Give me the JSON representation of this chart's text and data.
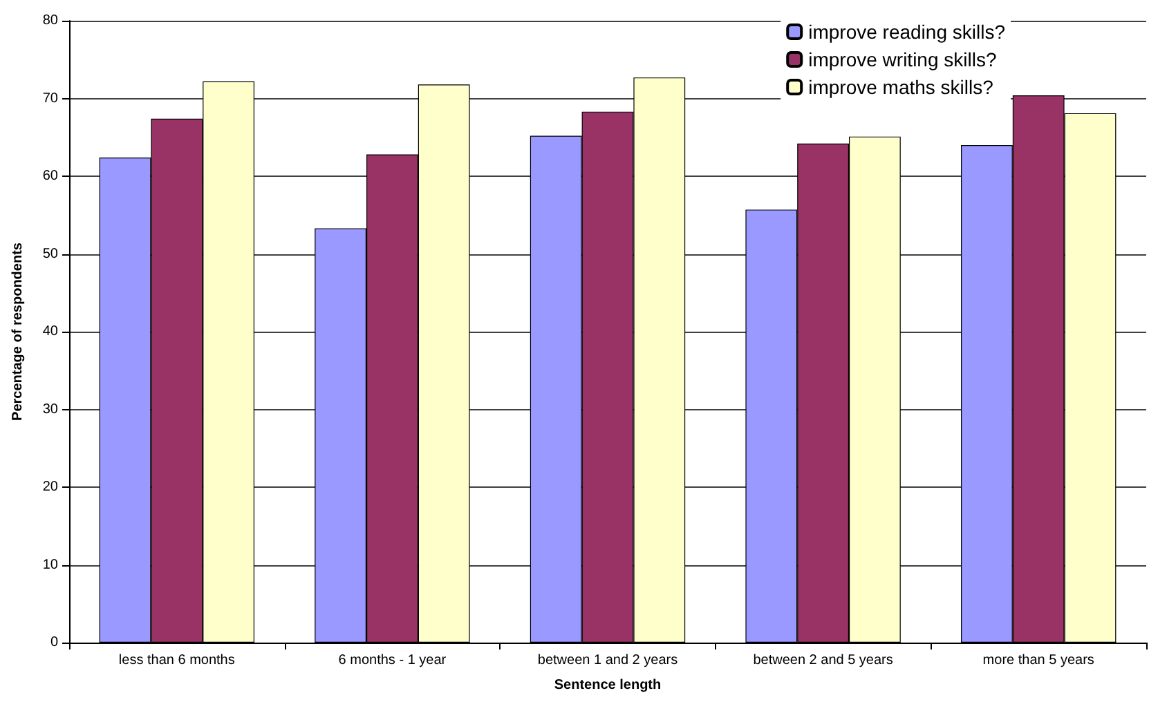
{
  "chart_data": {
    "type": "bar",
    "xlabel": "Sentence length",
    "ylabel": "Percentage of respondents",
    "categories": [
      "less than 6 months",
      "6 months - 1 year",
      "between 1 and 2 years",
      "between 2 and 5 years",
      "more than 5 years"
    ],
    "series": [
      {
        "name": "improve reading skills?",
        "color": "#9999ff",
        "values": [
          62.4,
          53.3,
          65.2,
          55.7,
          64.0
        ]
      },
      {
        "name": "improve writing skills?",
        "color": "#993366",
        "values": [
          67.4,
          62.8,
          68.3,
          64.2,
          70.4
        ]
      },
      {
        "name": "improve maths skills?",
        "color": "#ffffcc",
        "values": [
          72.2,
          71.8,
          72.7,
          65.1,
          68.1
        ]
      }
    ],
    "ylim": [
      0,
      80
    ],
    "yticks": [
      0,
      10,
      20,
      30,
      40,
      50,
      60,
      70,
      80
    ],
    "grid": "y",
    "legend": "top right"
  }
}
